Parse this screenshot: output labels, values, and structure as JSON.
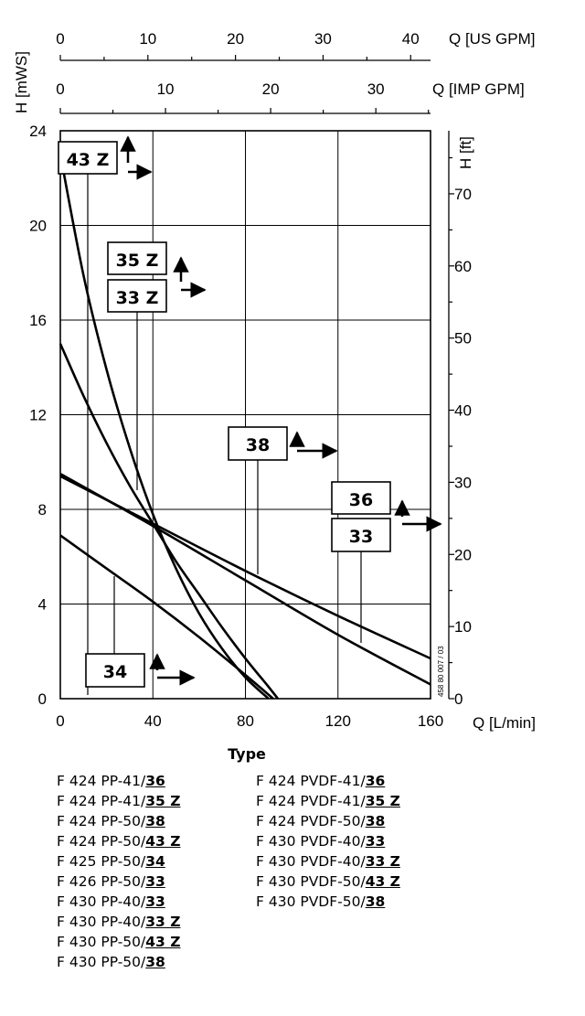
{
  "chart_data": {
    "type": "line",
    "x_axis": {
      "label": "Q [L/min]",
      "range": [
        0,
        160
      ],
      "ticks": [
        0,
        40,
        80,
        120,
        160
      ]
    },
    "y_axis": {
      "label": "H [mWS]",
      "range": [
        0,
        24
      ],
      "ticks": [
        0,
        4,
        8,
        12,
        16,
        20,
        24
      ]
    },
    "y2_axis": {
      "label": "H [ft]",
      "range": [
        0,
        78.74
      ],
      "ticks": [
        0,
        10,
        20,
        30,
        40,
        50,
        60,
        70
      ]
    },
    "x2_axis_us": {
      "label": "Q [US GPM]",
      "range": [
        0,
        42.27
      ],
      "ticks": [
        0,
        10,
        20,
        30,
        40
      ]
    },
    "x2_axis_imp": {
      "label": "Q [IMP GPM]",
      "range": [
        0,
        35.2
      ],
      "ticks": [
        0,
        10,
        20,
        30
      ]
    },
    "grid": true,
    "series": [
      {
        "name": "43 Z",
        "points": [
          [
            0,
            23.0
          ],
          [
            10,
            17.9
          ],
          [
            20,
            13.9
          ],
          [
            30,
            10.6
          ],
          [
            40,
            7.8
          ],
          [
            50,
            5.5
          ],
          [
            60,
            3.6
          ],
          [
            70,
            2.1
          ],
          [
            80,
            0.9
          ],
          [
            90,
            0.0
          ]
        ]
      },
      {
        "name": "35 Z",
        "points": [
          [
            0,
            15.0
          ],
          [
            10,
            12.8
          ],
          [
            20,
            10.8
          ],
          [
            30,
            9.0
          ],
          [
            40,
            7.4
          ],
          [
            50,
            5.8
          ],
          [
            60,
            4.4
          ],
          [
            70,
            3.0
          ],
          [
            80,
            1.7
          ],
          [
            90,
            0.5
          ],
          [
            94,
            0.0
          ]
        ]
      },
      {
        "name": "38",
        "points": [
          [
            0,
            9.5
          ],
          [
            40,
            7.3
          ],
          [
            80,
            5.0
          ],
          [
            120,
            2.7
          ],
          [
            160,
            0.6
          ]
        ]
      },
      {
        "name": "36",
        "points": [
          [
            0,
            9.4
          ],
          [
            40,
            7.4
          ],
          [
            80,
            5.4
          ],
          [
            120,
            3.5
          ],
          [
            160,
            1.7
          ]
        ]
      },
      {
        "name": "34",
        "points": [
          [
            0,
            6.9
          ],
          [
            20,
            5.5
          ],
          [
            40,
            4.1
          ],
          [
            60,
            2.6
          ],
          [
            80,
            1.0
          ],
          [
            92,
            0.0
          ]
        ]
      }
    ],
    "annotations": {
      "a43z": "43 Z",
      "a35z": "35 Z",
      "a33z": "33 Z",
      "a38": "38",
      "a36": "36",
      "a33": "33",
      "a34": "34"
    },
    "watermark": "458 80 007 / 03"
  },
  "legend": {
    "title": "Type",
    "col1": [
      {
        "prefix": "F 424 PP-41/",
        "code": "36"
      },
      {
        "prefix": "F 424 PP-41/",
        "code": "35 Z"
      },
      {
        "prefix": "F 424 PP-50/",
        "code": "38"
      },
      {
        "prefix": "F 424 PP-50/",
        "code": "43 Z"
      },
      {
        "prefix": "F 425 PP-50/",
        "code": "34"
      },
      {
        "prefix": "F 426 PP-50/",
        "code": "33"
      },
      {
        "prefix": "F 430 PP-40/",
        "code": "33"
      },
      {
        "prefix": "F 430 PP-40/",
        "code": "33 Z"
      },
      {
        "prefix": "F 430 PP-50/",
        "code": "43 Z"
      },
      {
        "prefix": "F 430 PP-50/",
        "code": "38"
      }
    ],
    "col2": [
      {
        "prefix": "F 424 PVDF-41/",
        "code": "36"
      },
      {
        "prefix": "F 424 PVDF-41/",
        "code": "35 Z"
      },
      {
        "prefix": "F 424 PVDF-50/",
        "code": "38"
      },
      {
        "prefix": "F 430 PVDF-40/",
        "code": "33"
      },
      {
        "prefix": "F 430 PVDF-40/",
        "code": "33 Z"
      },
      {
        "prefix": "F 430 PVDF-50/",
        "code": "43 Z"
      },
      {
        "prefix": "F 430 PVDF-50/",
        "code": "38"
      }
    ]
  }
}
